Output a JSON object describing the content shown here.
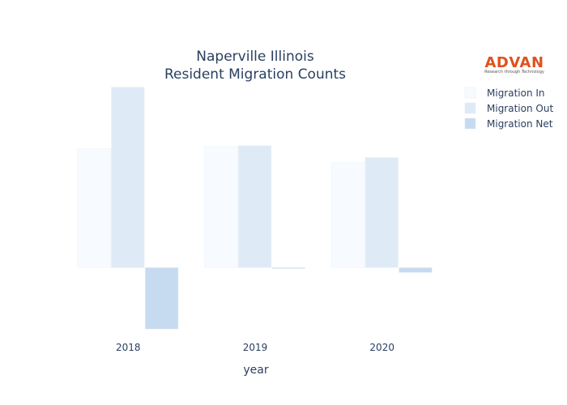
{
  "brand": {
    "name": "ADVAN",
    "tagline": "Research through Technology",
    "color": "#e0521d"
  },
  "chart_data": {
    "type": "bar",
    "title_lines": [
      "Naperville Illinois",
      "Resident Migration Counts"
    ],
    "xlabel": "year",
    "ylabel": "",
    "categories": [
      "2018",
      "2019",
      "2020"
    ],
    "ylim": [
      -650,
      1800
    ],
    "grid": false,
    "legend_position": "top-right",
    "series": [
      {
        "name": "Migration In",
        "color": "#f7fbff",
        "values": [
          1200,
          1220,
          1060
        ]
      },
      {
        "name": "Migration Out",
        "color": "#deebf7",
        "values": [
          1820,
          1230,
          1110
        ]
      },
      {
        "name": "Migration Net",
        "color": "#c6dbef",
        "values": [
          -620,
          -10,
          -50
        ]
      }
    ]
  }
}
